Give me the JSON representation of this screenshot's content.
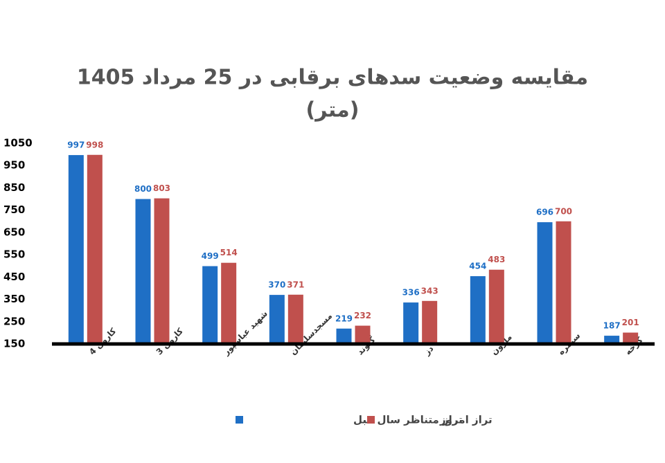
{
  "chart_data": {
    "type": "bar",
    "title": "مقایسه وضعیت سدهای برقابی در 25 مرداد 1405",
    "subtitle": "(متر)",
    "categories": [
      "کارون 4",
      "کارون 3",
      "شهید عباسپور",
      "مسجدسلیمان",
      "گتوند",
      "دز",
      "مارون",
      "سیمره",
      "کرخه"
    ],
    "series": [
      {
        "name": "تراز متناظر سال قبل",
        "color": "#1f6fc5",
        "values": [
          997,
          800,
          499,
          370,
          219,
          336,
          454,
          696,
          187
        ]
      },
      {
        "name": "تراز امروز",
        "color": "#c0504d",
        "values": [
          998,
          803,
          514,
          371,
          232,
          343,
          483,
          700,
          201
        ]
      }
    ],
    "ylim": [
      150,
      1050
    ],
    "yticks": [
      150,
      250,
      350,
      450,
      550,
      650,
      750,
      850,
      950,
      1050
    ],
    "grid": false
  }
}
